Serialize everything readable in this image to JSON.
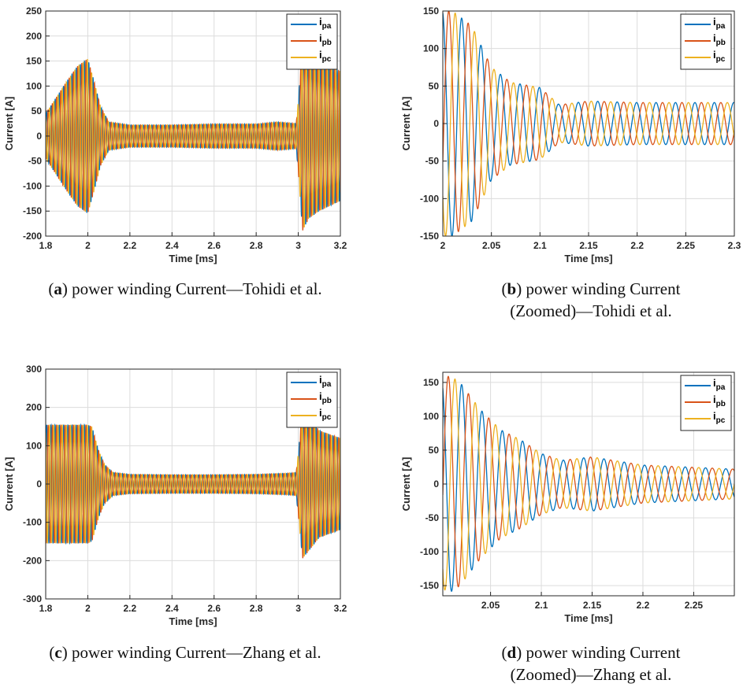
{
  "colors": {
    "ipa": "#0072BD",
    "ipb": "#D95319",
    "ipc": "#EDB120",
    "grid": "#dcdcdc",
    "axis": "#262626"
  },
  "legend": {
    "items": [
      {
        "base": "i",
        "sub": "pa"
      },
      {
        "base": "i",
        "sub": "pb"
      },
      {
        "base": "i",
        "sub": "pc"
      }
    ],
    "position": "top-right"
  },
  "captions": {
    "a": {
      "letter": "a",
      "line1": "power winding Current—Tohidi et al.",
      "line2": ""
    },
    "b": {
      "letter": "b",
      "line1": "power winding Current",
      "line2": "(Zoomed)—Tohidi et al."
    },
    "c": {
      "letter": "c",
      "line1": "power winding Current—Zhang et al.",
      "line2": ""
    },
    "d": {
      "letter": "d",
      "line1": "power winding Current",
      "line2": "(Zoomed)—Zhang et al."
    }
  },
  "chart_data": [
    {
      "id": "a",
      "type": "line",
      "xlabel": "Time [ms]",
      "ylabel": "Current [A]",
      "xlim": [
        1.8,
        3.2
      ],
      "ylim": [
        -200,
        250
      ],
      "grid": true,
      "xticks": [
        1.8,
        2,
        2.2,
        2.4,
        2.6,
        2.8,
        3,
        3.2
      ],
      "xtick_labels": [
        "1.8",
        "2",
        "2.2",
        "2.4",
        "2.6",
        "2.8",
        "3",
        "3.2"
      ],
      "yticks": [
        -200,
        -150,
        -100,
        -50,
        0,
        50,
        100,
        150,
        200,
        250
      ],
      "ytick_labels": [
        "-200",
        "-150",
        "-100",
        "-50",
        "0",
        "50",
        "100",
        "150",
        "200",
        "250"
      ],
      "series": [
        {
          "name": "ipa",
          "phase_deg": 0
        },
        {
          "name": "ipb",
          "phase_deg": -120
        },
        {
          "name": "ipc",
          "phase_deg": 120
        }
      ],
      "frequency_khz": 50,
      "envelope": {
        "t": [
          1.8,
          1.9,
          1.95,
          2.0,
          2.03,
          2.06,
          2.1,
          2.2,
          2.4,
          2.6,
          2.8,
          2.9,
          2.99,
          3.0,
          3.02,
          3.05,
          3.1,
          3.2
        ],
        "amplitude": [
          45,
          110,
          140,
          155,
          110,
          60,
          28,
          22,
          22,
          24,
          24,
          28,
          25,
          70,
          190,
          165,
          150,
          130
        ]
      }
    },
    {
      "id": "b",
      "type": "line",
      "xlabel": "Time [ms]",
      "ylabel": "Current [A]",
      "xlim": [
        2.0,
        2.3
      ],
      "ylim": [
        -150,
        150
      ],
      "grid": true,
      "xticks": [
        2,
        2.05,
        2.1,
        2.15,
        2.2,
        2.25,
        2.3
      ],
      "xtick_labels": [
        "2",
        "2.05",
        "2.1",
        "2.15",
        "2.2",
        "2.25",
        "2.3"
      ],
      "yticks": [
        -150,
        -100,
        -50,
        0,
        50,
        100,
        150
      ],
      "ytick_labels": [
        "-150",
        "-100",
        "-50",
        "0",
        "50",
        "100",
        "150"
      ],
      "series": [
        {
          "name": "ipa",
          "phase_deg": 100
        },
        {
          "name": "ipb",
          "phase_deg": -20
        },
        {
          "name": "ipc",
          "phase_deg": 220
        }
      ],
      "frequency_khz": 50,
      "envelope": {
        "t": [
          2.0,
          2.01,
          2.03,
          2.05,
          2.07,
          2.1,
          2.12,
          2.15,
          2.2,
          2.3
        ],
        "amplitude": [
          150,
          150,
          130,
          75,
          55,
          48,
          25,
          30,
          28,
          28
        ]
      }
    },
    {
      "id": "c",
      "type": "line",
      "xlabel": "Time [ms]",
      "ylabel": "Current [A]",
      "xlim": [
        1.8,
        3.2
      ],
      "ylim": [
        -300,
        300
      ],
      "grid": true,
      "xticks": [
        1.8,
        2,
        2.2,
        2.4,
        2.6,
        2.8,
        3,
        3.2
      ],
      "xtick_labels": [
        "1.8",
        "2",
        "2.2",
        "2.4",
        "2.6",
        "2.8",
        "3",
        "3.2"
      ],
      "yticks": [
        -300,
        -200,
        -100,
        0,
        100,
        200,
        300
      ],
      "ytick_labels": [
        "-300",
        "-200",
        "-100",
        "0",
        "100",
        "200",
        "300"
      ],
      "series": [
        {
          "name": "ipa",
          "phase_deg": 0
        },
        {
          "name": "ipb",
          "phase_deg": -120
        },
        {
          "name": "ipc",
          "phase_deg": 120
        }
      ],
      "frequency_khz": 50,
      "envelope": {
        "t": [
          1.8,
          1.9,
          2.0,
          2.02,
          2.05,
          2.08,
          2.12,
          2.2,
          2.4,
          2.6,
          2.8,
          2.95,
          2.99,
          3.0,
          3.02,
          3.05,
          3.1,
          3.2
        ],
        "amplitude": [
          155,
          155,
          155,
          150,
          90,
          50,
          30,
          25,
          24,
          24,
          25,
          28,
          30,
          80,
          195,
          175,
          140,
          120
        ]
      }
    },
    {
      "id": "d",
      "type": "line",
      "xlabel": "Time [ms]",
      "ylabel": "Current [A]",
      "xlim": [
        2.003,
        2.29
      ],
      "ylim": [
        -165,
        165
      ],
      "grid": true,
      "xticks": [
        2.05,
        2.1,
        2.15,
        2.2,
        2.25
      ],
      "xtick_labels": [
        "2.05",
        "2.1",
        "2.15",
        "2.2",
        "2.25"
      ],
      "yticks": [
        -150,
        -100,
        -50,
        0,
        50,
        100,
        150
      ],
      "ytick_labels": [
        "-150",
        "-100",
        "-50",
        "0",
        "50",
        "100",
        "150"
      ],
      "series": [
        {
          "name": "ipa",
          "phase_deg": 60
        },
        {
          "name": "ipb",
          "phase_deg": -60
        },
        {
          "name": "ipc",
          "phase_deg": 180
        }
      ],
      "frequency_khz": 50,
      "envelope": {
        "t": [
          2.003,
          2.01,
          2.02,
          2.04,
          2.06,
          2.08,
          2.1,
          2.12,
          2.15,
          2.2,
          2.29
        ],
        "amplitude": [
          155,
          160,
          150,
          110,
          80,
          65,
          45,
          35,
          40,
          28,
          22
        ]
      }
    }
  ]
}
